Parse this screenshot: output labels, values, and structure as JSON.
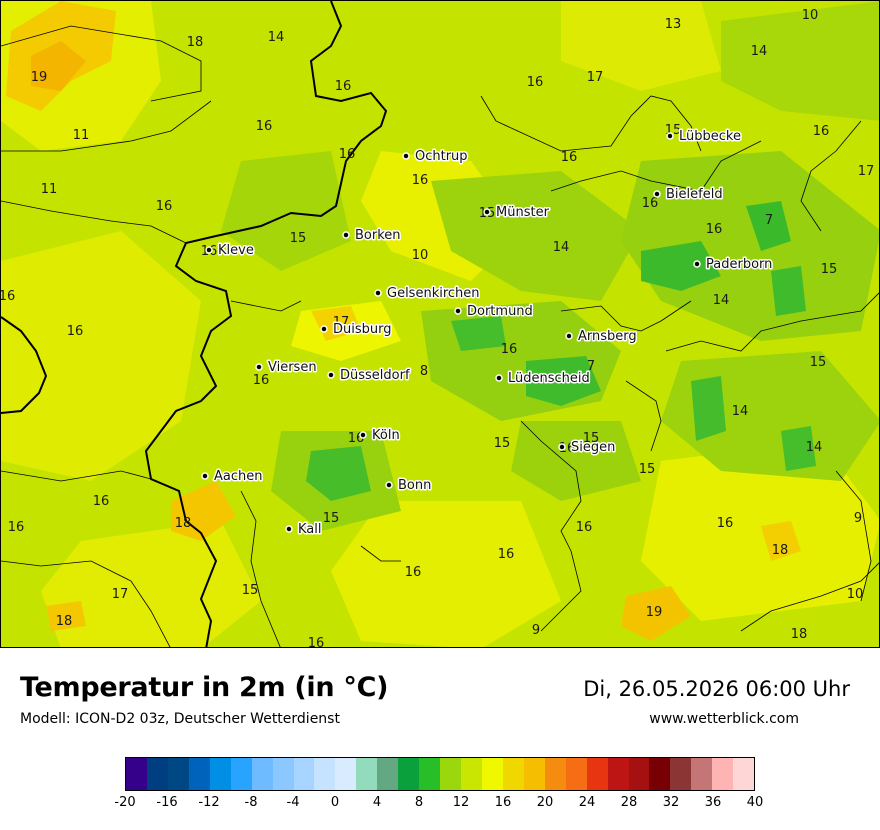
{
  "header": {
    "title": "Temperatur in 2m (in °C)",
    "model": "Modell: ICON-D2 03z, Deutscher Wetterdienst",
    "datetime": "Di, 26.05.2026 06:00 Uhr",
    "website": "www.wetterblick.com"
  },
  "cities": [
    "Ochtrup",
    "Lübbecke",
    "Bielefeld",
    "Münster",
    "Borken",
    "Kleve",
    "Paderborn",
    "Gelsenkirchen",
    "Dortmund",
    "Duisburg",
    "Arnsberg",
    "Viersen",
    "Düsseldorf",
    "Lüdenscheid",
    "Köln",
    "Siegen",
    "Aachen",
    "Bonn",
    "Kall"
  ],
  "map_values": [
    "10",
    "13",
    "14",
    "17",
    "18",
    "14",
    "19",
    "16",
    "11",
    "16",
    "16",
    "16",
    "16",
    "16",
    "11",
    "17",
    "16",
    "16",
    "15",
    "16",
    "16",
    "14",
    "7",
    "15",
    "10",
    "16",
    "15",
    "14",
    "17",
    "16",
    "16",
    "15",
    "16",
    "7",
    "16",
    "8",
    "15",
    "14",
    "16",
    "15",
    "14",
    "15",
    "18",
    "16",
    "16",
    "16",
    "9",
    "18",
    "16",
    "15",
    "15",
    "16",
    "17",
    "18",
    "15",
    "19",
    "10",
    "18",
    "9",
    "16",
    "16",
    "16"
  ],
  "legend": {
    "colors": [
      "#35008a",
      "#003e82",
      "#004884",
      "#0063bb",
      "#008fe5",
      "#28a4ff",
      "#6ebcff",
      "#8ac8ff",
      "#a8d5ff",
      "#c5e3ff",
      "#d9ecff",
      "#92dbbd",
      "#63a883",
      "#0aa03c",
      "#28be28",
      "#9ad70c",
      "#c8e601",
      "#f0f800",
      "#f0d700",
      "#f5be00",
      "#f58c10",
      "#f56e14",
      "#e63510",
      "#bd1414",
      "#a51010",
      "#780005",
      "#8b3535",
      "#c47676",
      "#ffb4b4",
      "#ffd6d6"
    ],
    "ticks": [
      "-20",
      "-16",
      "-12",
      "-8",
      "-4",
      "0",
      "4",
      "8",
      "12",
      "16",
      "20",
      "24",
      "28",
      "32",
      "36",
      "40"
    ]
  }
}
